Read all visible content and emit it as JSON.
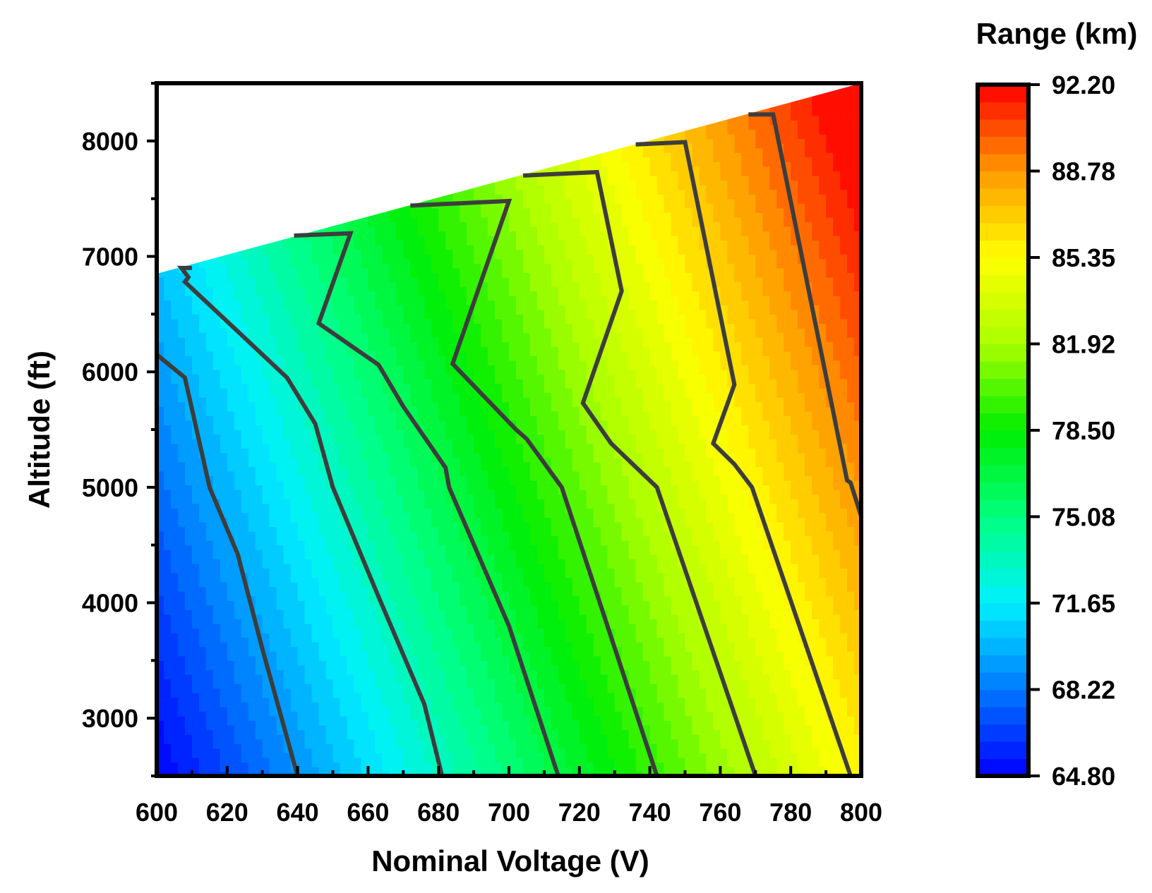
{
  "chart_data": {
    "type": "heatmap",
    "subtype": "filled-contour",
    "xlabel": "Nominal Voltage (V)",
    "ylabel": "Altitude (ft)",
    "xlim": [
      600,
      800
    ],
    "ylim": [
      2500,
      8500
    ],
    "xticks": [
      600,
      620,
      640,
      660,
      680,
      700,
      720,
      740,
      760,
      780,
      800
    ],
    "yticks": [
      3000,
      4000,
      5000,
      6000,
      7000,
      8000
    ],
    "data_boundary": [
      [
        600,
        6850
      ],
      [
        800,
        8500
      ]
    ],
    "colorbar": {
      "title": "Range (km)",
      "min": 64.8,
      "max": 92.2,
      "tick_labels": [
        "92.20",
        "88.78",
        "85.35",
        "81.92",
        "78.50",
        "75.08",
        "71.65",
        "68.22",
        "64.80"
      ],
      "colormap": [
        "#0000ff",
        "#0078ff",
        "#00f0ff",
        "#00ff7f",
        "#00ee00",
        "#aaff00",
        "#ffff00",
        "#ff9900",
        "#ff0000"
      ],
      "levels": 40
    },
    "range_model": {
      "base_at_600V_2500ft": 64.8,
      "per_volt": 0.1045,
      "per_ft": 0.00125
    },
    "contour_lines": [
      {
        "points": [
          [
            600,
            6150
          ],
          [
            608,
            5950
          ],
          [
            615,
            5000
          ],
          [
            623,
            4420
          ],
          [
            630,
            3600
          ],
          [
            640,
            2500
          ]
        ]
      },
      {
        "points": [
          [
            610,
            6900
          ],
          [
            607,
            6900
          ],
          [
            609,
            6820
          ],
          [
            608,
            6780
          ],
          [
            630,
            6150
          ],
          [
            637,
            5950
          ],
          [
            645,
            5550
          ],
          [
            650,
            5000
          ],
          [
            663,
            4050
          ],
          [
            676,
            3120
          ],
          [
            681,
            2500
          ]
        ]
      },
      {
        "points": [
          [
            639,
            7180
          ],
          [
            655,
            7200
          ],
          [
            646,
            6420
          ],
          [
            663,
            6060
          ],
          [
            670,
            5700
          ],
          [
            682,
            5170
          ],
          [
            683,
            5000
          ],
          [
            700,
            3800
          ],
          [
            714,
            2500
          ]
        ]
      },
      {
        "points": [
          [
            672,
            7440
          ],
          [
            700,
            7480
          ],
          [
            684,
            6070
          ],
          [
            702,
            5500
          ],
          [
            705,
            5420
          ],
          [
            715,
            5000
          ],
          [
            742,
            2500
          ]
        ]
      },
      {
        "points": [
          [
            704,
            7700
          ],
          [
            725,
            7730
          ],
          [
            732,
            6700
          ],
          [
            721,
            5730
          ],
          [
            729,
            5380
          ],
          [
            742,
            5000
          ],
          [
            770,
            2500
          ]
        ]
      },
      {
        "points": [
          [
            736,
            7970
          ],
          [
            750,
            7990
          ],
          [
            764,
            5890
          ],
          [
            758,
            5380
          ],
          [
            764,
            5200
          ],
          [
            769,
            5000
          ],
          [
            797,
            2500
          ]
        ]
      },
      {
        "points": [
          [
            768,
            8230
          ],
          [
            775,
            8230
          ],
          [
            796,
            5060
          ],
          [
            797,
            5040
          ],
          [
            800,
            4750
          ]
        ]
      }
    ]
  }
}
